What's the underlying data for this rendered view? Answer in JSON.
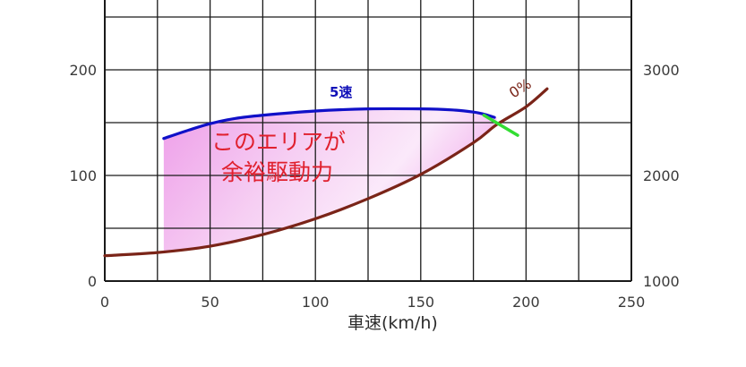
{
  "chart_data": {
    "type": "line",
    "title": "",
    "xlabel": "車速(km/h)",
    "ylabel_left": "",
    "ylabel_right": "",
    "xlim": [
      0,
      250
    ],
    "ylim_left": [
      0,
      250
    ],
    "ylim_right": [
      1000,
      3500
    ],
    "x_ticks": [
      "0",
      "50",
      "100",
      "150",
      "200",
      "250"
    ],
    "y_ticks_left": [
      "0",
      "100",
      "200"
    ],
    "y_ticks_right": [
      "1000",
      "2000",
      "3000"
    ],
    "grid": true,
    "grid_x_step": 25,
    "grid_y_step": 50,
    "series": [
      {
        "name": "5速",
        "color": "#1010c8",
        "x": [
          28,
          40,
          50,
          62,
          75,
          100,
          125,
          150,
          165,
          175,
          180,
          185
        ],
        "y": [
          135,
          143,
          149,
          154,
          157,
          161,
          163,
          163,
          162,
          160,
          158,
          155
        ]
      },
      {
        "name": "0%",
        "color": "#7a2418",
        "x": [
          0,
          25,
          50,
          75,
          100,
          125,
          150,
          175,
          186,
          200,
          210
        ],
        "y": [
          24,
          27,
          33,
          44,
          59,
          78,
          101,
          131,
          148,
          165,
          182
        ]
      },
      {
        "name": "intersection-marker",
        "color": "#33dd33",
        "x": [
          180,
          196
        ],
        "y": [
          157,
          138
        ]
      }
    ],
    "shaded_area": {
      "label": "このエリアが余裕駆動力",
      "between": [
        "5速",
        "0%"
      ],
      "x_range": [
        28,
        186
      ],
      "color": "#e98fe3"
    },
    "annotations": [
      {
        "text": "このエリアが",
        "x": 100,
        "y": 130
      },
      {
        "text": "余裕駆動力",
        "x": 100,
        "y": 102
      },
      {
        "text": "5速",
        "x": 108,
        "y": 177
      },
      {
        "text": "0%",
        "x": 200,
        "y": 180
      }
    ]
  },
  "labels": {
    "xlabel": "車速(km/h)",
    "annot_line1": "このエリアが",
    "annot_line2": "余裕駆動力",
    "gear": "5速",
    "grade": "0%"
  }
}
